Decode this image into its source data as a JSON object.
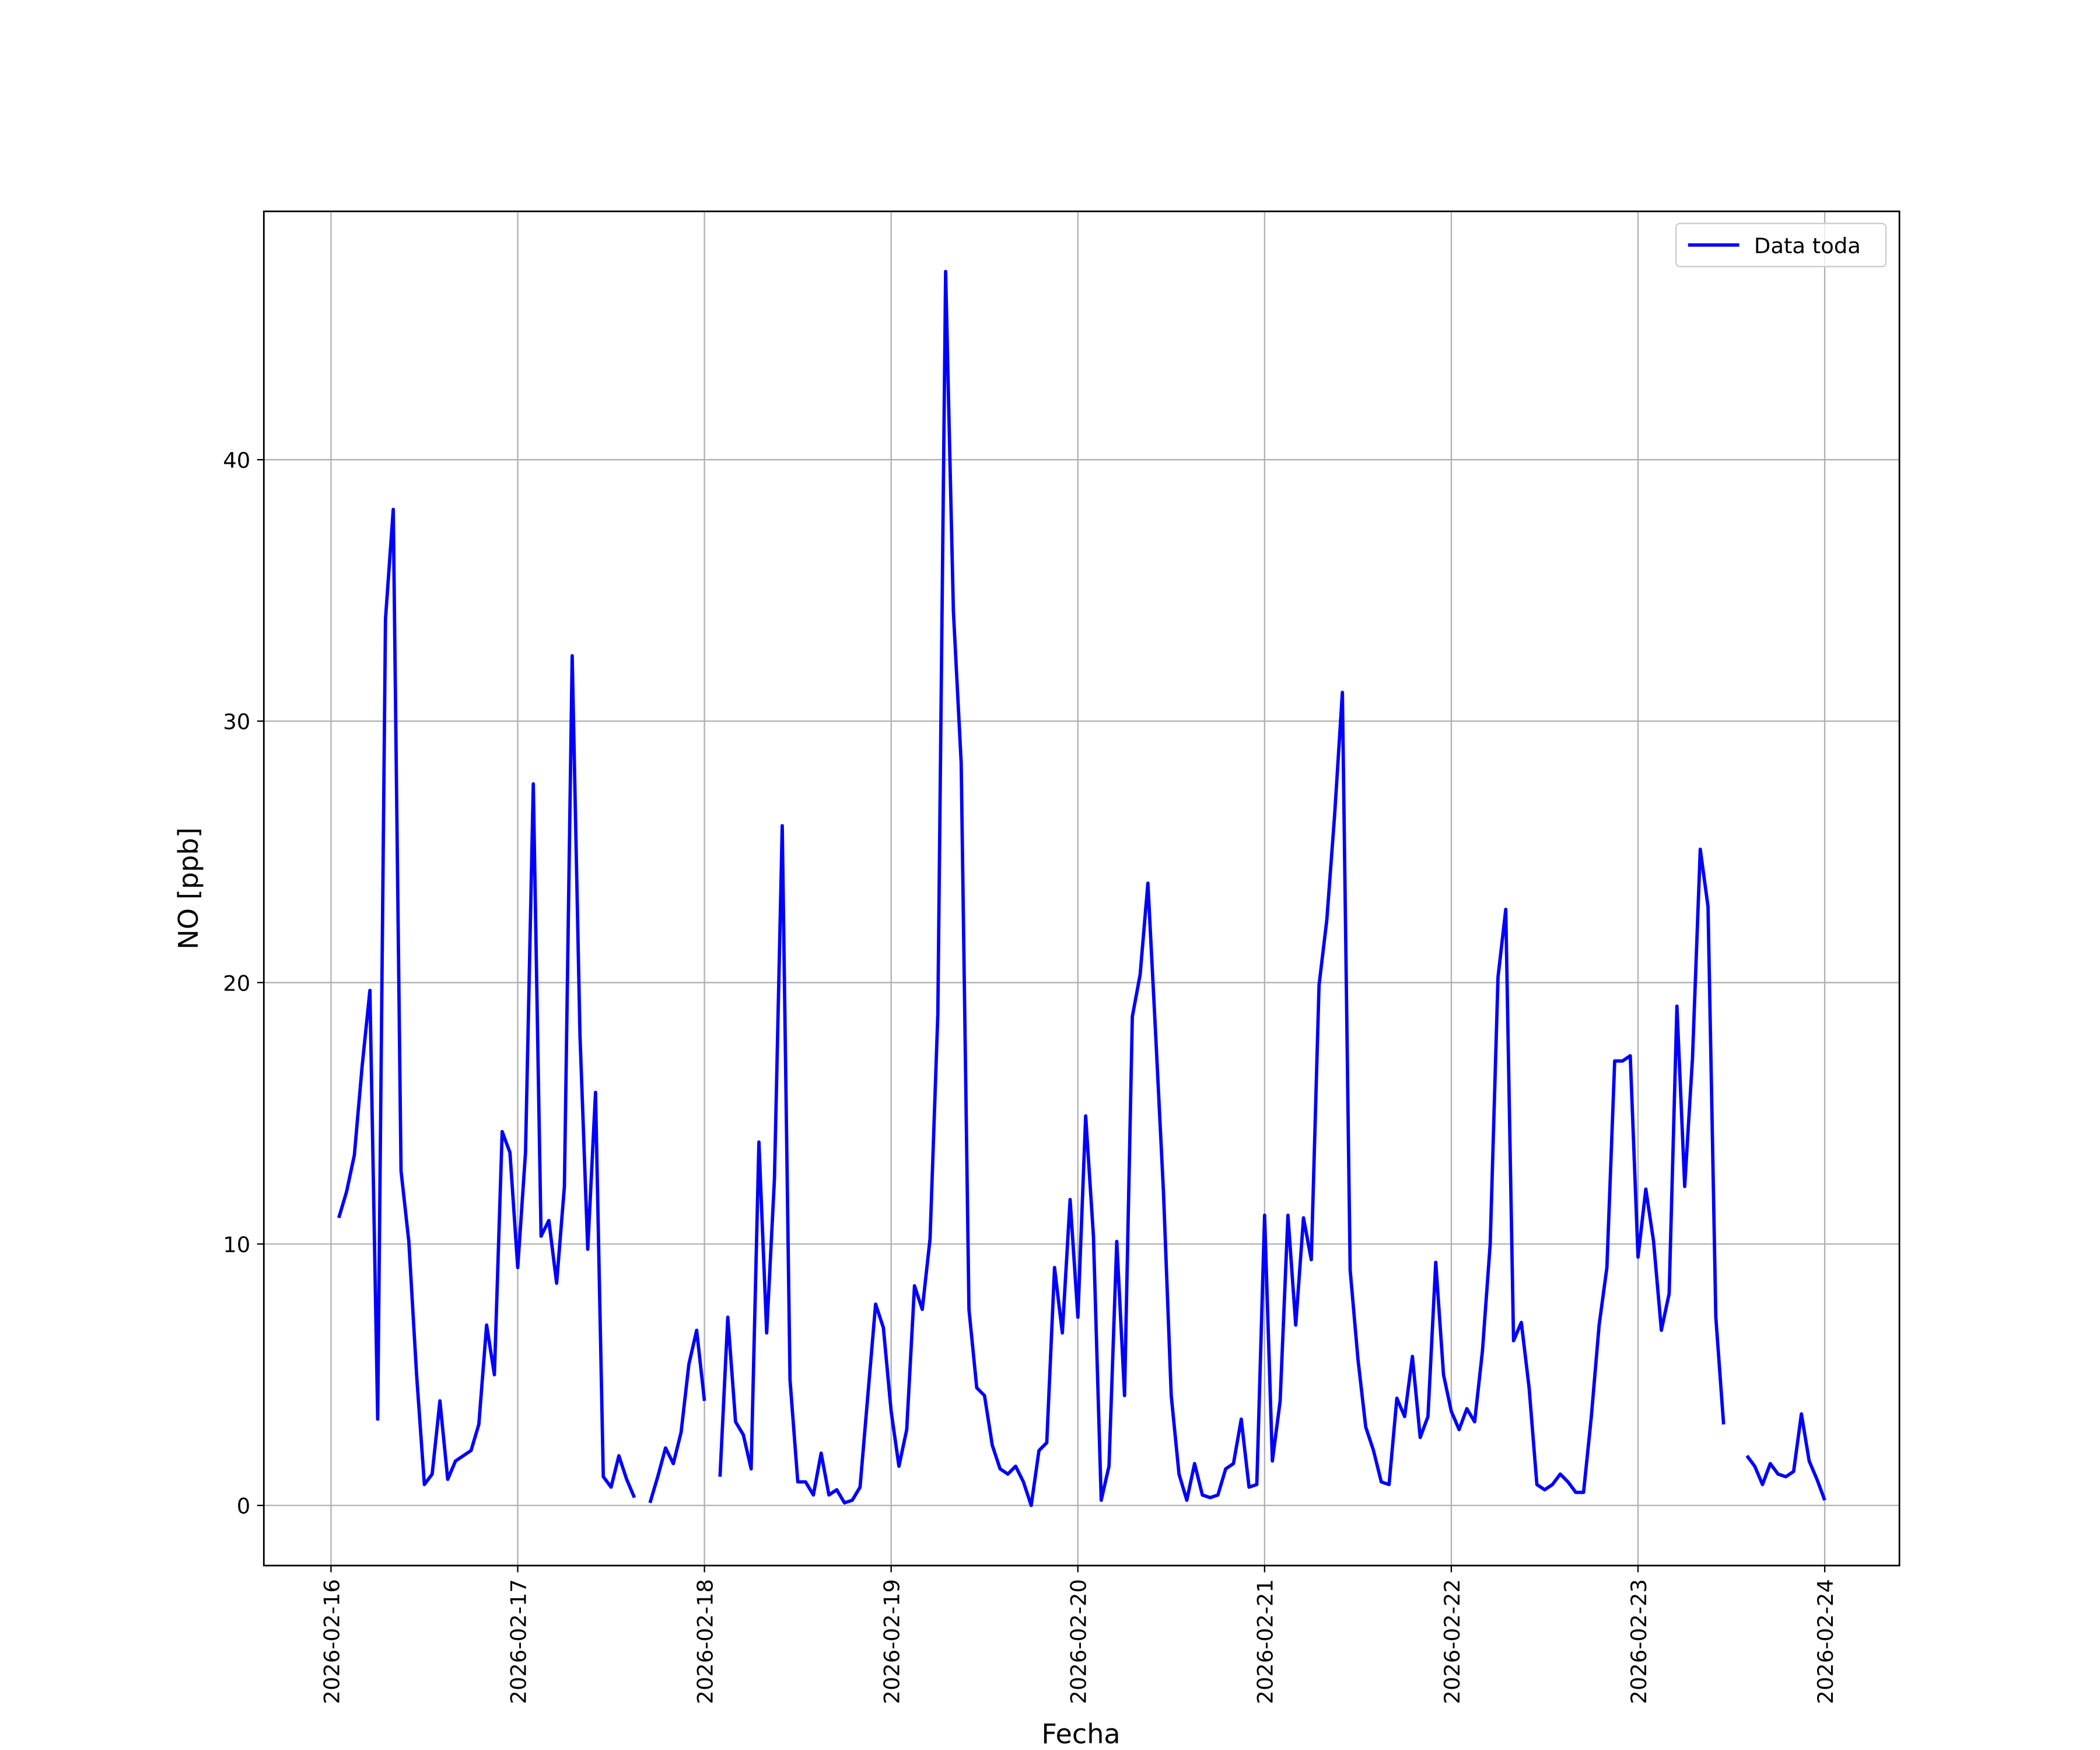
{
  "chart_data": {
    "type": "line",
    "xlabel": "Fecha",
    "ylabel": "NO [ppb]",
    "x": [
      "2026-02-16 01:00",
      "2026-02-16 02:00",
      "2026-02-16 03:00",
      "2026-02-16 04:00",
      "2026-02-16 05:00",
      "2026-02-16 06:00",
      "2026-02-16 07:00",
      "2026-02-16 08:00",
      "2026-02-16 09:00",
      "2026-02-16 10:00",
      "2026-02-16 11:00",
      "2026-02-16 12:00",
      "2026-02-16 13:00",
      "2026-02-16 14:00",
      "2026-02-16 15:00",
      "2026-02-16 16:00",
      "2026-02-16 17:00",
      "2026-02-16 18:00",
      "2026-02-16 19:00",
      "2026-02-16 20:00",
      "2026-02-16 21:00",
      "2026-02-16 22:00",
      "2026-02-16 23:00",
      "2026-02-17 00:00",
      "2026-02-17 01:00",
      "2026-02-17 02:00",
      "2026-02-17 03:00",
      "2026-02-17 04:00",
      "2026-02-17 05:00",
      "2026-02-17 06:00",
      "2026-02-17 07:00",
      "2026-02-17 08:00",
      "2026-02-17 09:00",
      "2026-02-17 10:00",
      "2026-02-17 11:00",
      "2026-02-17 12:00",
      "2026-02-17 13:00",
      "2026-02-17 14:00",
      "2026-02-17 15:00",
      "2026-02-17 16:00",
      "2026-02-17 17:00",
      "2026-02-17 18:00",
      "2026-02-17 19:00",
      "2026-02-17 20:00",
      "2026-02-17 21:00",
      "2026-02-17 22:00",
      "2026-02-17 23:00",
      "2026-02-18 00:00",
      "2026-02-18 01:00",
      "2026-02-18 02:00",
      "2026-02-18 03:00",
      "2026-02-18 04:00",
      "2026-02-18 05:00",
      "2026-02-18 06:00",
      "2026-02-18 07:00",
      "2026-02-18 08:00",
      "2026-02-18 09:00",
      "2026-02-18 10:00",
      "2026-02-18 11:00",
      "2026-02-18 12:00",
      "2026-02-18 13:00",
      "2026-02-18 14:00",
      "2026-02-18 15:00",
      "2026-02-18 16:00",
      "2026-02-18 17:00",
      "2026-02-18 18:00",
      "2026-02-18 19:00",
      "2026-02-18 20:00",
      "2026-02-18 21:00",
      "2026-02-18 22:00",
      "2026-02-18 23:00",
      "2026-02-19 00:00",
      "2026-02-19 01:00",
      "2026-02-19 02:00",
      "2026-02-19 03:00",
      "2026-02-19 04:00",
      "2026-02-19 05:00",
      "2026-02-19 06:00",
      "2026-02-19 07:00",
      "2026-02-19 08:00",
      "2026-02-19 09:00",
      "2026-02-19 10:00",
      "2026-02-19 11:00",
      "2026-02-19 12:00",
      "2026-02-19 13:00",
      "2026-02-19 14:00",
      "2026-02-19 15:00",
      "2026-02-19 16:00",
      "2026-02-19 17:00",
      "2026-02-19 18:00",
      "2026-02-19 19:00",
      "2026-02-19 20:00",
      "2026-02-19 21:00",
      "2026-02-19 22:00",
      "2026-02-19 23:00",
      "2026-02-20 00:00",
      "2026-02-20 01:00",
      "2026-02-20 02:00",
      "2026-02-20 03:00",
      "2026-02-20 04:00",
      "2026-02-20 05:00",
      "2026-02-20 06:00",
      "2026-02-20 07:00",
      "2026-02-20 08:00",
      "2026-02-20 09:00",
      "2026-02-20 10:00",
      "2026-02-20 11:00",
      "2026-02-20 12:00",
      "2026-02-20 13:00",
      "2026-02-20 14:00",
      "2026-02-20 15:00",
      "2026-02-20 16:00",
      "2026-02-20 17:00",
      "2026-02-20 18:00",
      "2026-02-20 19:00",
      "2026-02-20 20:00",
      "2026-02-20 21:00",
      "2026-02-20 22:00",
      "2026-02-20 23:00",
      "2026-02-21 00:00",
      "2026-02-21 01:00",
      "2026-02-21 02:00",
      "2026-02-21 03:00",
      "2026-02-21 04:00",
      "2026-02-21 05:00",
      "2026-02-21 06:00",
      "2026-02-21 07:00",
      "2026-02-21 08:00",
      "2026-02-21 09:00",
      "2026-02-21 10:00",
      "2026-02-21 11:00",
      "2026-02-21 12:00",
      "2026-02-21 13:00",
      "2026-02-21 14:00",
      "2026-02-21 15:00",
      "2026-02-21 16:00",
      "2026-02-21 17:00",
      "2026-02-21 18:00",
      "2026-02-21 19:00",
      "2026-02-21 20:00",
      "2026-02-21 21:00",
      "2026-02-21 22:00",
      "2026-02-21 23:00",
      "2026-02-22 00:00",
      "2026-02-22 01:00",
      "2026-02-22 02:00",
      "2026-02-22 03:00",
      "2026-02-22 04:00",
      "2026-02-22 05:00",
      "2026-02-22 06:00",
      "2026-02-22 07:00",
      "2026-02-22 08:00",
      "2026-02-22 09:00",
      "2026-02-22 10:00",
      "2026-02-22 11:00",
      "2026-02-22 12:00",
      "2026-02-22 13:00",
      "2026-02-22 14:00",
      "2026-02-22 15:00",
      "2026-02-22 16:00",
      "2026-02-22 17:00",
      "2026-02-22 18:00",
      "2026-02-22 19:00",
      "2026-02-22 20:00",
      "2026-02-22 21:00",
      "2026-02-22 22:00",
      "2026-02-22 23:00",
      "2026-02-23 00:00",
      "2026-02-23 01:00",
      "2026-02-23 02:00",
      "2026-02-23 03:00",
      "2026-02-23 04:00",
      "2026-02-23 05:00",
      "2026-02-23 06:00",
      "2026-02-23 07:00",
      "2026-02-23 08:00",
      "2026-02-23 09:00",
      "2026-02-23 10:00",
      "2026-02-23 11:00",
      "2026-02-23 12:00",
      "2026-02-23 13:00",
      "2026-02-23 14:00",
      "2026-02-23 15:00",
      "2026-02-23 16:00",
      "2026-02-23 17:00",
      "2026-02-23 18:00",
      "2026-02-23 19:00",
      "2026-02-23 20:00",
      "2026-02-23 21:00",
      "2026-02-23 22:00",
      "2026-02-23 23:00",
      "2026-02-24 00:00"
    ],
    "series": [
      {
        "name": "Data toda",
        "color": "#0000ff",
        "values": [
          11.0,
          12,
          13.4,
          16.8,
          19.7,
          3.3,
          33.9,
          38.1,
          12.8,
          10.1,
          5.0,
          0.8,
          1.2,
          4.0,
          1.0,
          1.7,
          1.9,
          2.1,
          3.1,
          6.9,
          5.0,
          14.3,
          13.5,
          9.1,
          13.5,
          27.6,
          10.3,
          10.9,
          8.5,
          12.2,
          32.5,
          18,
          9.8,
          15.8,
          1.1,
          0.7,
          1.9,
          1.0,
          0.3,
          null,
          0.1,
          1.1,
          2.2,
          1.6,
          2.8,
          5.4,
          6.7,
          4.0,
          null,
          1.1,
          7.2,
          3.2,
          2.7,
          1.4,
          13.9,
          6.6,
          12.5,
          26.0,
          4.8,
          0.9,
          0.9,
          0.4,
          2.0,
          0.4,
          0.6,
          0.1,
          0.2,
          0.7,
          4.2,
          7.7,
          6.8,
          3.6,
          1.5,
          2.9,
          8.4,
          7.5,
          10.2,
          18.8,
          47.2,
          34.2,
          28.4,
          7.5,
          4.5,
          4.2,
          2.3,
          1.4,
          1.2,
          1.5,
          0.9,
          0.0,
          2.1,
          2.4,
          9.1,
          6.6,
          11.7,
          7.2,
          14.9,
          10.3,
          0.2,
          1.5,
          10.1,
          4.2,
          18.7,
          20.3,
          23.8,
          18.0,
          12.0,
          4.2,
          1.2,
          0.2,
          1.6,
          0.4,
          0.3,
          0.4,
          1.4,
          1.6,
          3.3,
          0.7,
          0.8,
          11.1,
          1.7,
          4.0,
          11.1,
          6.9,
          11.0,
          9.4,
          19.9,
          22.4,
          26.4,
          31.1,
          9.0,
          5.6,
          3.0,
          2.1,
          0.9,
          0.8,
          4.1,
          3.4,
          5.7,
          2.6,
          3.4,
          9.3,
          5.0,
          3.6,
          2.9,
          3.7,
          3.2,
          5.9,
          10.0,
          20.2,
          22.8,
          6.3,
          7.0,
          4.5,
          0.8,
          0.6,
          0.8,
          1.2,
          0.9,
          0.5,
          0.5,
          3.4,
          6.9,
          9.1,
          17.0,
          17.0,
          17.2,
          9.5,
          12.1,
          10.1,
          6.7,
          8.1,
          19.1,
          12.2,
          17.1,
          25.1,
          22.9,
          7.2,
          3.1,
          null,
          null,
          1.9,
          1.5,
          0.8,
          1.6,
          1.2,
          1.1,
          1.3,
          3.5,
          1.7,
          1.0,
          0.2
        ]
      }
    ],
    "xlim": [
      "2026-02-15 15:22",
      "2026-02-24 09:36"
    ],
    "xticks": [
      "2026-02-16",
      "2026-02-17",
      "2026-02-18",
      "2026-02-19",
      "2026-02-20",
      "2026-02-21",
      "2026-02-22",
      "2026-02-23",
      "2026-02-24"
    ],
    "ylim": [
      -2.3,
      49.5
    ],
    "yticks": [
      0,
      10,
      20,
      30,
      40
    ],
    "grid": true,
    "legend": "upper right"
  }
}
